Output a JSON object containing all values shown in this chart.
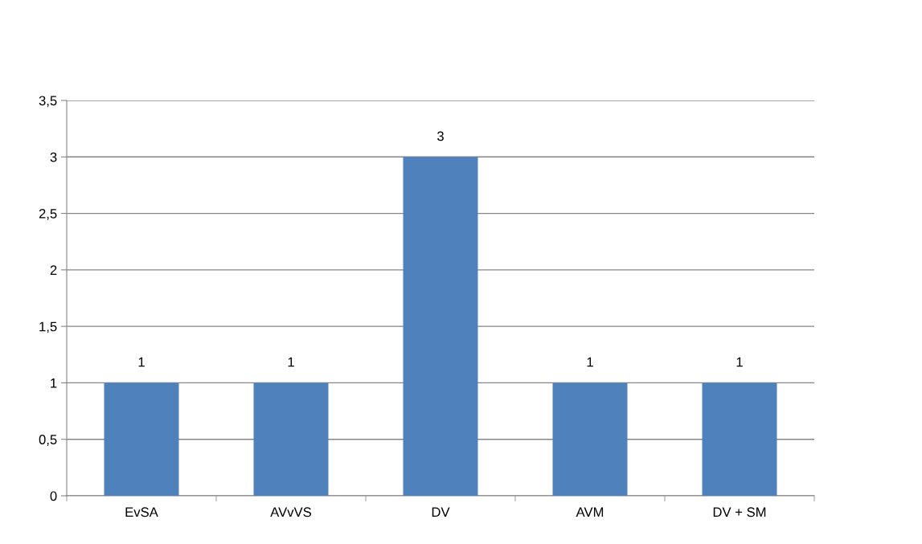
{
  "chart_data": {
    "type": "bar",
    "categories": [
      "EvSA",
      "AVvVS",
      "DV",
      "AVM",
      "DV + SM"
    ],
    "values": [
      1,
      1,
      3,
      1,
      1
    ],
    "color": "#4f81bd",
    "ylim": [
      0,
      3.5
    ],
    "yticks": [
      0,
      {
        "value": 0.5,
        "label": "0,5"
      },
      1,
      {
        "value": 1.5,
        "label": "1,5"
      },
      2,
      {
        "value": 2.5,
        "label": "2,5"
      },
      3,
      {
        "value": 3.5,
        "label": "3,5"
      }
    ],
    "grid": "y",
    "data_labels": true
  }
}
